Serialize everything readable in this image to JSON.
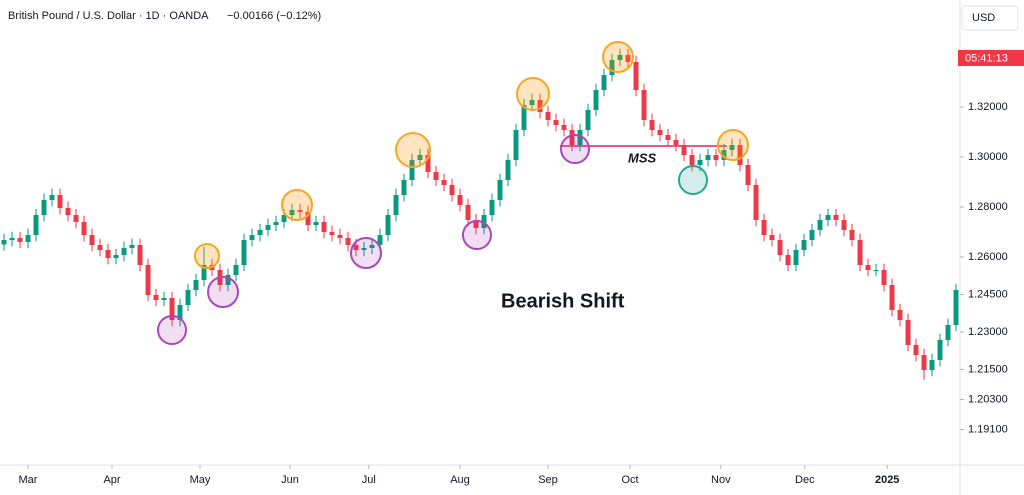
{
  "chart_data": {
    "type": "candlestick",
    "title": "British Pound / U.S. Dollar · 1D · OANDA",
    "change": "−0.00166 (−0.12%)",
    "currency": "USD",
    "countdown": "05:41:13",
    "annotations": [
      {
        "text": "MSS"
      },
      {
        "text": "Bearish Shift"
      }
    ],
    "up_color": "#089981",
    "down_color": "#f23645",
    "grid": false,
    "xlim": [
      -0.5,
      119.5
    ],
    "xticks": [
      {
        "value": 3,
        "label": "Mar"
      },
      {
        "value": 13.5,
        "label": "Apr"
      },
      {
        "value": 24.5,
        "label": "May"
      },
      {
        "value": 35.75,
        "label": "Jun"
      },
      {
        "value": 45.6,
        "label": "Jul"
      },
      {
        "value": 57,
        "label": "Aug"
      },
      {
        "value": 68,
        "label": "Sep"
      },
      {
        "value": 78.25,
        "label": "Oct"
      },
      {
        "value": 89.6,
        "label": "Nov"
      },
      {
        "value": 100.1,
        "label": "Dec"
      },
      {
        "value": 110.4,
        "label": "2025"
      }
    ],
    "ylim": [
      1.1768,
      1.3628
    ],
    "yticks": [
      {
        "value": 1.32,
        "label": "1.32000"
      },
      {
        "value": 1.3,
        "label": "1.30000"
      },
      {
        "value": 1.28,
        "label": "1.28000"
      },
      {
        "value": 1.26,
        "label": "1.26000"
      },
      {
        "value": 1.245,
        "label": "1.24500"
      },
      {
        "value": 1.23,
        "label": "1.23000"
      },
      {
        "value": 1.215,
        "label": "1.21500"
      },
      {
        "value": 1.203,
        "label": "1.20300"
      },
      {
        "value": 1.191,
        "label": "1.19100"
      }
    ],
    "open": [
      1.265,
      1.2668,
      1.2676,
      1.266,
      1.2688,
      1.2768,
      1.2828,
      1.2848,
      1.2796,
      1.2768,
      1.274,
      1.2688,
      1.2648,
      1.2628,
      1.2596,
      1.2608,
      1.2636,
      1.2648,
      1.2568,
      1.2448,
      1.2428,
      1.2436,
      1.2348,
      1.2408,
      1.2468,
      1.2508,
      1.2568,
      1.2548,
      1.2488,
      1.2528,
      1.2568,
      1.2668,
      1.2688,
      1.2708,
      1.2728,
      1.274,
      1.2768,
      1.2788,
      1.278,
      1.2728,
      1.274,
      1.27,
      1.2688,
      1.2676,
      1.2648,
      1.2628,
      1.2636,
      1.2648,
      1.2688,
      1.2768,
      1.2848,
      1.2908,
      1.2988,
      1.3008,
      1.294,
      1.2908,
      1.2888,
      1.2848,
      1.2808,
      1.2748,
      1.2716,
      1.2768,
      1.2828,
      1.2908,
      1.2988,
      1.3108,
      1.3208,
      1.3228,
      1.318,
      1.3148,
      1.3128,
      1.3108,
      1.3048,
      1.3108,
      1.3188,
      1.3268,
      1.3328,
      1.3388,
      1.3408,
      1.338,
      1.3268,
      1.3148,
      1.3108,
      1.3088,
      1.3068,
      1.3048,
      1.3008,
      1.2968,
      1.2988,
      1.3008,
      1.2988,
      1.3028,
      1.3048,
      1.2968,
      1.2888,
      1.2748,
      1.2688,
      1.2668,
      1.2608,
      1.2568,
      1.2628,
      1.2668,
      1.2708,
      1.2748,
      1.2768,
      1.2748,
      1.2708,
      1.2668,
      1.2568,
      1.2548,
      1.2548,
      1.2488,
      1.2388,
      1.2348,
      1.2248,
      1.2208,
      1.2148,
      1.2188,
      1.2268,
      1.2328
    ],
    "high": [
      1.2693,
      1.2701,
      1.2701,
      1.2713,
      1.2793,
      1.2853,
      1.2873,
      1.2873,
      1.2821,
      1.2793,
      1.2765,
      1.2713,
      1.2673,
      1.2653,
      1.2633,
      1.2661,
      1.2673,
      1.2673,
      1.2593,
      1.2473,
      1.2461,
      1.2461,
      1.2433,
      1.2493,
      1.2533,
      1.264,
      1.2593,
      1.2573,
      1.2553,
      1.2593,
      1.2693,
      1.2713,
      1.2733,
      1.2753,
      1.2765,
      1.2793,
      1.2813,
      1.2813,
      1.2805,
      1.2765,
      1.2765,
      1.2725,
      1.2713,
      1.2701,
      1.2673,
      1.2661,
      1.2673,
      1.2713,
      1.2793,
      1.2873,
      1.2933,
      1.3013,
      1.3033,
      1.3033,
      1.2965,
      1.2933,
      1.2913,
      1.2873,
      1.2833,
      1.2773,
      1.2793,
      1.2853,
      1.2933,
      1.3013,
      1.3133,
      1.3233,
      1.3253,
      1.3253,
      1.3205,
      1.3173,
      1.3153,
      1.3133,
      1.3133,
      1.3213,
      1.3293,
      1.3353,
      1.3413,
      1.3433,
      1.3433,
      1.3405,
      1.3293,
      1.3173,
      1.3133,
      1.3113,
      1.3093,
      1.3073,
      1.3033,
      1.3013,
      1.3033,
      1.3033,
      1.3053,
      1.3073,
      1.3073,
      1.2993,
      1.2913,
      1.2773,
      1.2713,
      1.2693,
      1.2633,
      1.2653,
      1.2693,
      1.2733,
      1.2773,
      1.2793,
      1.2793,
      1.2773,
      1.2733,
      1.2693,
      1.2593,
      1.2573,
      1.2573,
      1.2513,
      1.2413,
      1.2373,
      1.2273,
      1.2233,
      1.2213,
      1.2293,
      1.2353,
      1.2493
    ],
    "low": [
      1.2625,
      1.2643,
      1.2635,
      1.2635,
      1.2663,
      1.2743,
      1.2803,
      1.2771,
      1.2743,
      1.2715,
      1.2663,
      1.2623,
      1.2603,
      1.2571,
      1.2571,
      1.2583,
      1.2611,
      1.2543,
      1.2423,
      1.2403,
      1.2403,
      1.2323,
      1.2323,
      1.2383,
      1.2443,
      1.2483,
      1.2523,
      1.2463,
      1.2463,
      1.2503,
      1.2543,
      1.2643,
      1.2663,
      1.2683,
      1.2703,
      1.2715,
      1.2743,
      1.2755,
      1.2703,
      1.2703,
      1.2675,
      1.2663,
      1.2651,
      1.2623,
      1.2603,
      1.2603,
      1.2611,
      1.2623,
      1.2663,
      1.2743,
      1.2823,
      1.2883,
      1.2963,
      1.2915,
      1.2883,
      1.2863,
      1.2823,
      1.2783,
      1.2723,
      1.2691,
      1.2691,
      1.2743,
      1.2803,
      1.2883,
      1.2963,
      1.3083,
      1.3183,
      1.3155,
      1.3123,
      1.3103,
      1.3083,
      1.3023,
      1.3023,
      1.3083,
      1.3163,
      1.3243,
      1.3303,
      1.3363,
      1.3355,
      1.3243,
      1.3123,
      1.3083,
      1.3063,
      1.3043,
      1.3023,
      1.2983,
      1.2943,
      1.2943,
      1.2963,
      1.2963,
      1.2963,
      1.3003,
      1.2943,
      1.2863,
      1.2723,
      1.2663,
      1.2643,
      1.2583,
      1.2543,
      1.2543,
      1.2603,
      1.2643,
      1.2683,
      1.2723,
      1.2723,
      1.2683,
      1.2643,
      1.2543,
      1.2523,
      1.2523,
      1.2463,
      1.2363,
      1.2323,
      1.2223,
      1.2183,
      1.2108,
      1.2123,
      1.2163,
      1.2243,
      1.2303
    ],
    "close": [
      1.2668,
      1.2676,
      1.266,
      1.2688,
      1.2768,
      1.2828,
      1.2848,
      1.2796,
      1.2768,
      1.274,
      1.2688,
      1.2648,
      1.2628,
      1.2596,
      1.2608,
      1.2636,
      1.2648,
      1.2568,
      1.2448,
      1.2428,
      1.2436,
      1.2348,
      1.2408,
      1.2468,
      1.2508,
      1.2568,
      1.2548,
      1.2488,
      1.2528,
      1.2568,
      1.2668,
      1.2688,
      1.2708,
      1.2728,
      1.274,
      1.2768,
      1.2788,
      1.278,
      1.2728,
      1.274,
      1.27,
      1.2688,
      1.2676,
      1.2648,
      1.2628,
      1.2636,
      1.2648,
      1.2688,
      1.2768,
      1.2848,
      1.2908,
      1.2988,
      1.3008,
      1.294,
      1.2908,
      1.2888,
      1.2848,
      1.2808,
      1.2748,
      1.2716,
      1.2768,
      1.2828,
      1.2908,
      1.2988,
      1.3108,
      1.3208,
      1.3228,
      1.318,
      1.3148,
      1.3128,
      1.3108,
      1.3048,
      1.3108,
      1.3188,
      1.3268,
      1.3328,
      1.3388,
      1.3408,
      1.338,
      1.3268,
      1.3148,
      1.3108,
      1.3088,
      1.3068,
      1.3048,
      1.3008,
      1.2968,
      1.2988,
      1.3008,
      1.2988,
      1.3028,
      1.3048,
      1.2968,
      1.2888,
      1.2748,
      1.2688,
      1.2668,
      1.2608,
      1.2568,
      1.2628,
      1.2668,
      1.2708,
      1.2748,
      1.2768,
      1.2748,
      1.2708,
      1.2668,
      1.2568,
      1.2548,
      1.2548,
      1.2488,
      1.2388,
      1.2348,
      1.2248,
      1.2208,
      1.2148,
      1.2188,
      1.2268,
      1.2328,
      1.2468
    ]
  }
}
